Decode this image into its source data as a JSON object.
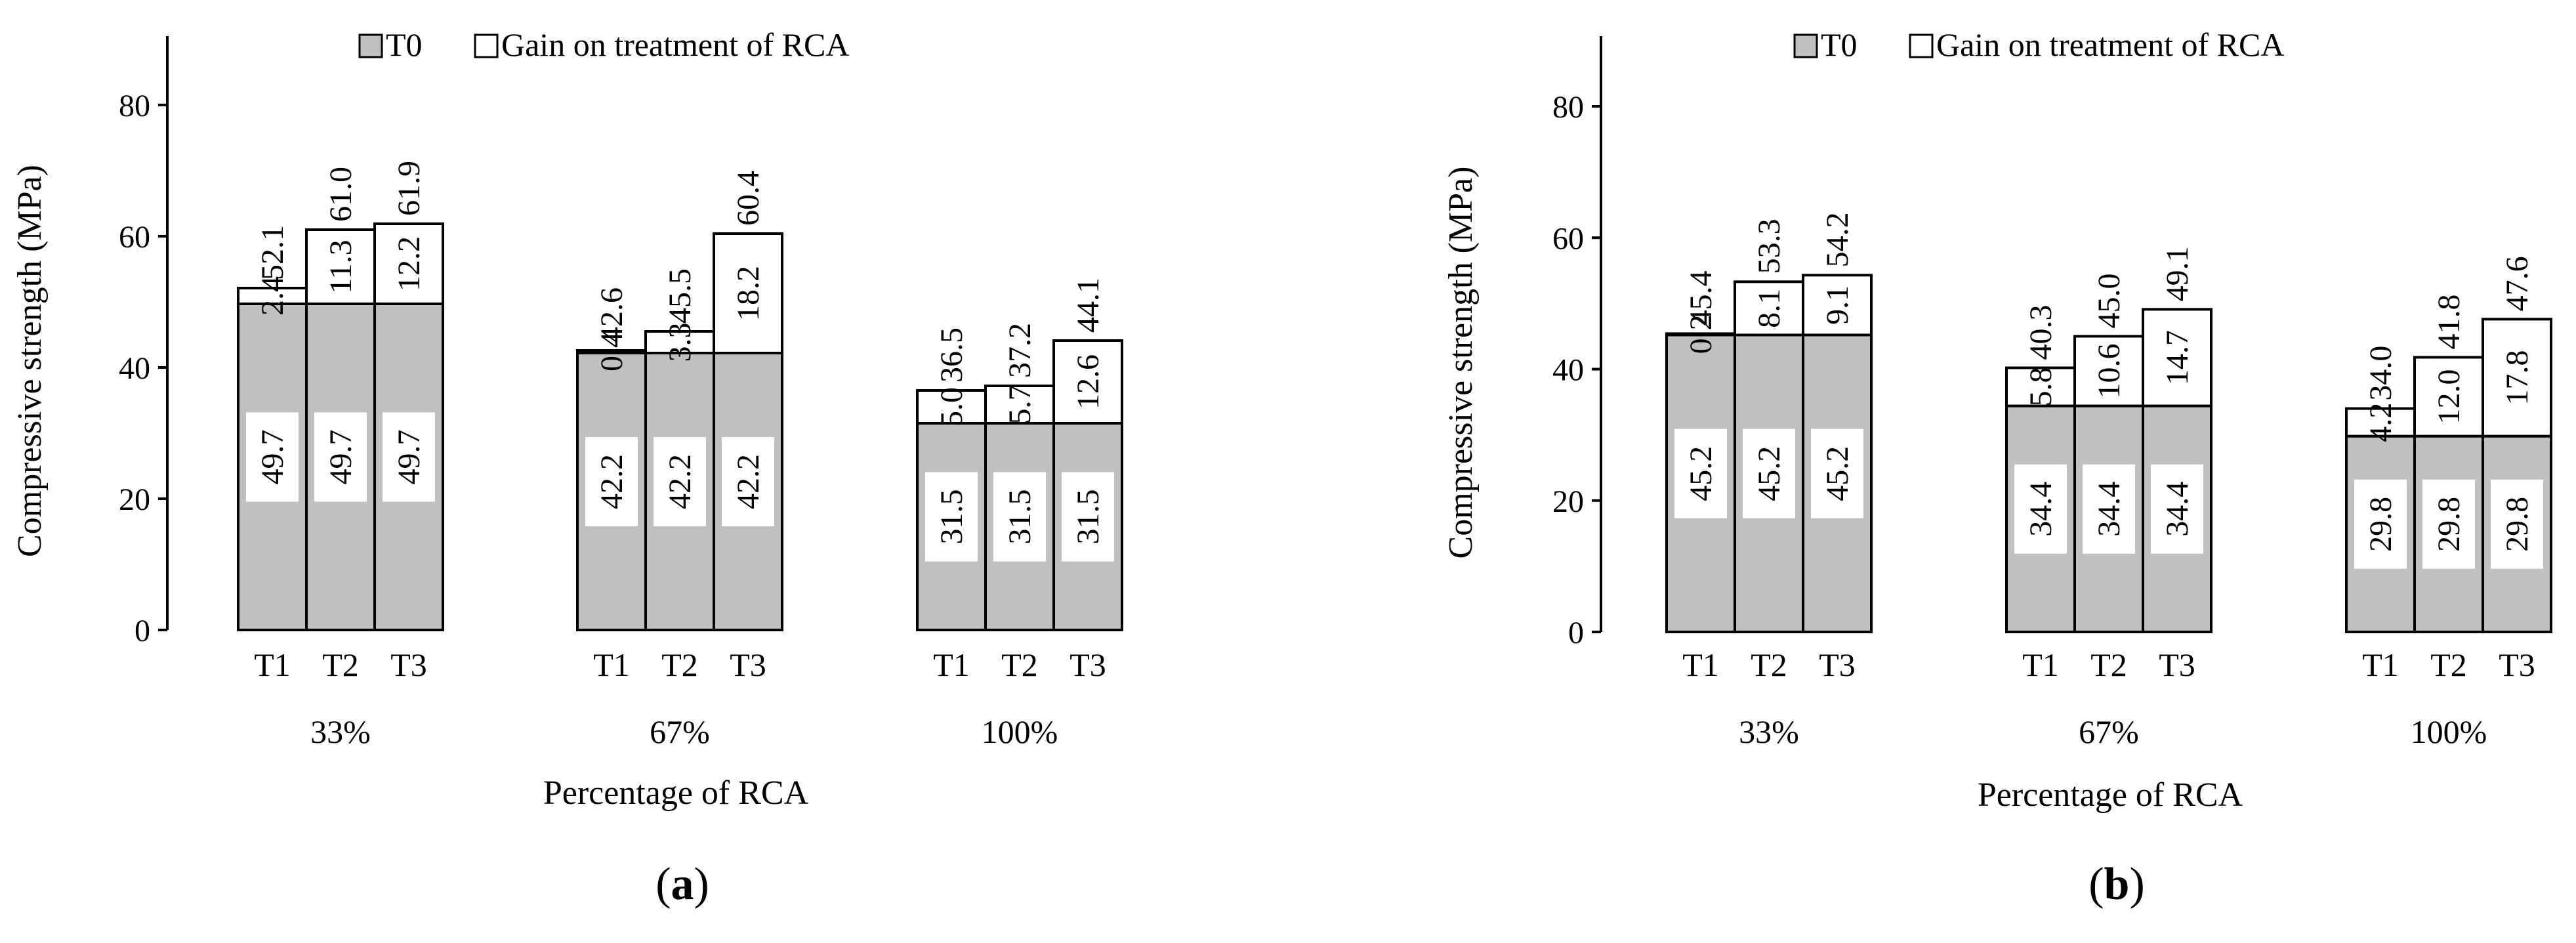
{
  "colors": {
    "base": "#c0c0c0",
    "gain": "#ffffff",
    "stroke": "#000000"
  },
  "chart_data": [
    {
      "type": "bar",
      "stacked": true,
      "panel_label": "(a)",
      "title": "",
      "xlabel": "Percentage of RCA",
      "ylabel": "Compressive strength (MPa)",
      "ylim": [
        0,
        80
      ],
      "yticks": [
        "0",
        "20",
        "40",
        "60",
        "80"
      ],
      "legend": {
        "placement": "top-center",
        "entries": [
          "T0",
          "Gain on treatment of RCA"
        ]
      },
      "groups": [
        {
          "label": "33%",
          "bars": [
            {
              "cat": "T1",
              "base": 49.7,
              "gain": 2.4,
              "base_label": "49.7",
              "gain_label": "2.4",
              "total_label": "52.1"
            },
            {
              "cat": "T2",
              "base": 49.7,
              "gain": 11.3,
              "base_label": "49.7",
              "gain_label": "11.3",
              "total_label": "61.0"
            },
            {
              "cat": "T3",
              "base": 49.7,
              "gain": 12.2,
              "base_label": "49.7",
              "gain_label": "12.2",
              "total_label": "61.9"
            }
          ]
        },
        {
          "label": "67%",
          "bars": [
            {
              "cat": "T1",
              "base": 42.2,
              "gain": 0.4,
              "base_label": "42.2",
              "gain_label": "0.4",
              "total_label": "42.6"
            },
            {
              "cat": "T2",
              "base": 42.2,
              "gain": 3.3,
              "base_label": "42.2",
              "gain_label": "3.3",
              "total_label": "45.5"
            },
            {
              "cat": "T3",
              "base": 42.2,
              "gain": 18.2,
              "base_label": "42.2",
              "gain_label": "18.2",
              "total_label": "60.4"
            }
          ]
        },
        {
          "label": "100%",
          "bars": [
            {
              "cat": "T1",
              "base": 31.5,
              "gain": 5.0,
              "base_label": "31.5",
              "gain_label": "5.0",
              "total_label": "36.5"
            },
            {
              "cat": "T2",
              "base": 31.5,
              "gain": 5.7,
              "base_label": "31.5",
              "gain_label": "5.7",
              "total_label": "37.2"
            },
            {
              "cat": "T3",
              "base": 31.5,
              "gain": 12.6,
              "base_label": "31.5",
              "gain_label": "12.6",
              "total_label": "44.1"
            }
          ]
        }
      ]
    },
    {
      "type": "bar",
      "stacked": true,
      "panel_label": "(b)",
      "title": "",
      "xlabel": "Percentage  of RCA",
      "ylabel": "Compressive  strength (MPa)",
      "ylim": [
        0,
        80
      ],
      "yticks": [
        "0",
        "20",
        "40",
        "60",
        "80"
      ],
      "legend": {
        "placement": "top-center",
        "entries": [
          "T0",
          "Gain on treatment of RCA"
        ]
      },
      "groups": [
        {
          "label": "33%",
          "bars": [
            {
              "cat": "T1",
              "base": 45.2,
              "gain": 0.2,
              "base_label": "45.2",
              "gain_label": "0.2",
              "total_label": "45.4"
            },
            {
              "cat": "T2",
              "base": 45.2,
              "gain": 8.1,
              "base_label": "45.2",
              "gain_label": "8.1",
              "total_label": "53.3"
            },
            {
              "cat": "T3",
              "base": 45.2,
              "gain": 9.1,
              "base_label": "45.2",
              "gain_label": "9.1",
              "total_label": "54.2"
            }
          ]
        },
        {
          "label": "67%",
          "bars": [
            {
              "cat": "T1",
              "base": 34.4,
              "gain": 5.8,
              "base_label": "34.4",
              "gain_label": "5.8",
              "total_label": "40.3"
            },
            {
              "cat": "T2",
              "base": 34.4,
              "gain": 10.6,
              "base_label": "34.4",
              "gain_label": "10.6",
              "total_label": "45.0"
            },
            {
              "cat": "T3",
              "base": 34.4,
              "gain": 14.7,
              "base_label": "34.4",
              "gain_label": "14.7",
              "total_label": "49.1"
            }
          ]
        },
        {
          "label": "100%",
          "bars": [
            {
              "cat": "T1",
              "base": 29.8,
              "gain": 4.2,
              "base_label": "29.8",
              "gain_label": "4.2",
              "total_label": "34.0"
            },
            {
              "cat": "T2",
              "base": 29.8,
              "gain": 12.0,
              "base_label": "29.8",
              "gain_label": "12.0",
              "total_label": "41.8"
            },
            {
              "cat": "T3",
              "base": 29.8,
              "gain": 17.8,
              "base_label": "29.8",
              "gain_label": "17.8",
              "total_label": "47.6"
            }
          ]
        }
      ]
    }
  ]
}
